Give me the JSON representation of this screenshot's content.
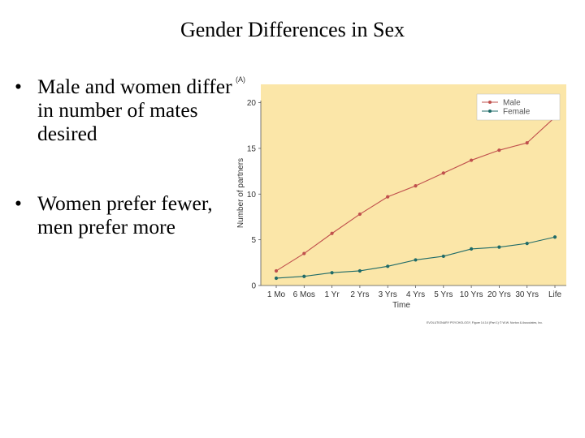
{
  "slide": {
    "title": "Gender Differences in Sex",
    "bullets": [
      "Male and women differ in number of mates desired",
      "Women prefer fewer, men prefer more"
    ]
  },
  "chart_data": {
    "type": "line",
    "panel_label": "(A)",
    "title": "",
    "xlabel": "Time",
    "ylabel": "Number of partners",
    "categories": [
      "1 Mo",
      "6 Mos",
      "1 Yr",
      "2 Yrs",
      "3 Yrs",
      "4 Yrs",
      "5 Yrs",
      "10 Yrs",
      "20 Yrs",
      "30 Yrs",
      "Life"
    ],
    "ylim": [
      0,
      22
    ],
    "yticks": [
      0,
      5,
      10,
      15,
      20
    ],
    "grid": false,
    "legend": "top-right",
    "series": [
      {
        "name": "Male",
        "color": "#c0504d",
        "values": [
          1.6,
          3.5,
          5.7,
          7.8,
          9.7,
          10.9,
          12.3,
          13.7,
          14.8,
          15.6,
          18.4
        ]
      },
      {
        "name": "Female",
        "color": "#1f6b68",
        "values": [
          0.8,
          1.0,
          1.4,
          1.6,
          2.1,
          2.8,
          3.2,
          4.0,
          4.2,
          4.6,
          5.3
        ]
      }
    ],
    "background_color": "#fbe6a8",
    "credit": "EVOLUTIONARY PSYCHOLOGY, Figure 14.14 (Part 1) © W.W. Norton & Associates, Inc."
  }
}
